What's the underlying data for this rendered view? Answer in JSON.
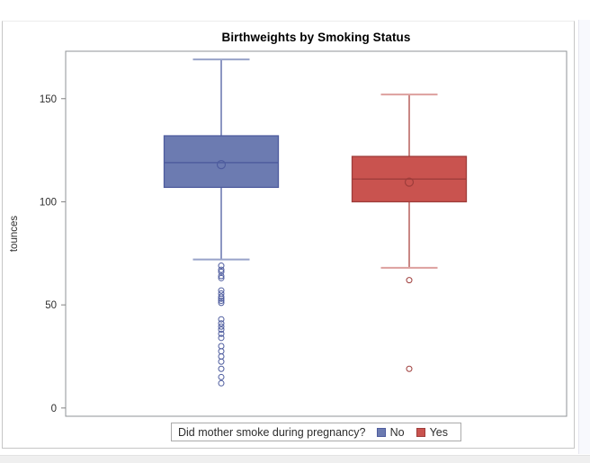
{
  "chart": {
    "title": "Birthweights by Smoking Status",
    "ylabel": "tounces"
  },
  "legend": {
    "title": "Did mother smoke during pregnancy?",
    "entries": [
      {
        "label": "No",
        "color": "#6C7BB1",
        "border": "#4E5C9E"
      },
      {
        "label": "Yes",
        "color": "#C9534F",
        "border": "#9E3D3B"
      }
    ]
  },
  "chart_data": {
    "type": "box",
    "title": "Birthweights by Smoking Status",
    "xlabel": "",
    "ylabel": "tounces",
    "legend_title": "Did mother smoke during pregnancy?",
    "legend_position": "bottom",
    "grid": false,
    "yticks": [
      0,
      50,
      100,
      150
    ],
    "ylim": [
      -4,
      173
    ],
    "wall_border_color": "#8f9397",
    "tick_color": "#828282",
    "groups": [
      {
        "name": "No",
        "fill": "#6C7BB1",
        "stroke": "#4E5C9E",
        "whisker_color": "#5A68A8",
        "cap_color": "#98A3C9",
        "stats": {
          "whisker_low": 72,
          "q1": 107,
          "median": 119,
          "q3": 132,
          "whisker_high": 169,
          "mean": 118
        },
        "outliers": [
          69,
          67,
          66,
          64,
          63,
          57,
          55.5,
          54,
          53,
          52,
          51,
          43,
          41,
          39.5,
          38,
          36,
          34,
          30,
          27.5,
          25,
          22.5,
          19,
          15,
          12
        ]
      },
      {
        "name": "Yes",
        "fill": "#C9534F",
        "stroke": "#9E3D3B",
        "whisker_color": "#B25450",
        "cap_color": "#DDA09E",
        "stats": {
          "whisker_low": 68,
          "q1": 100,
          "median": 111,
          "q3": 122,
          "whisker_high": 152,
          "mean": 109.5
        },
        "outliers": [
          62,
          19
        ]
      }
    ]
  }
}
